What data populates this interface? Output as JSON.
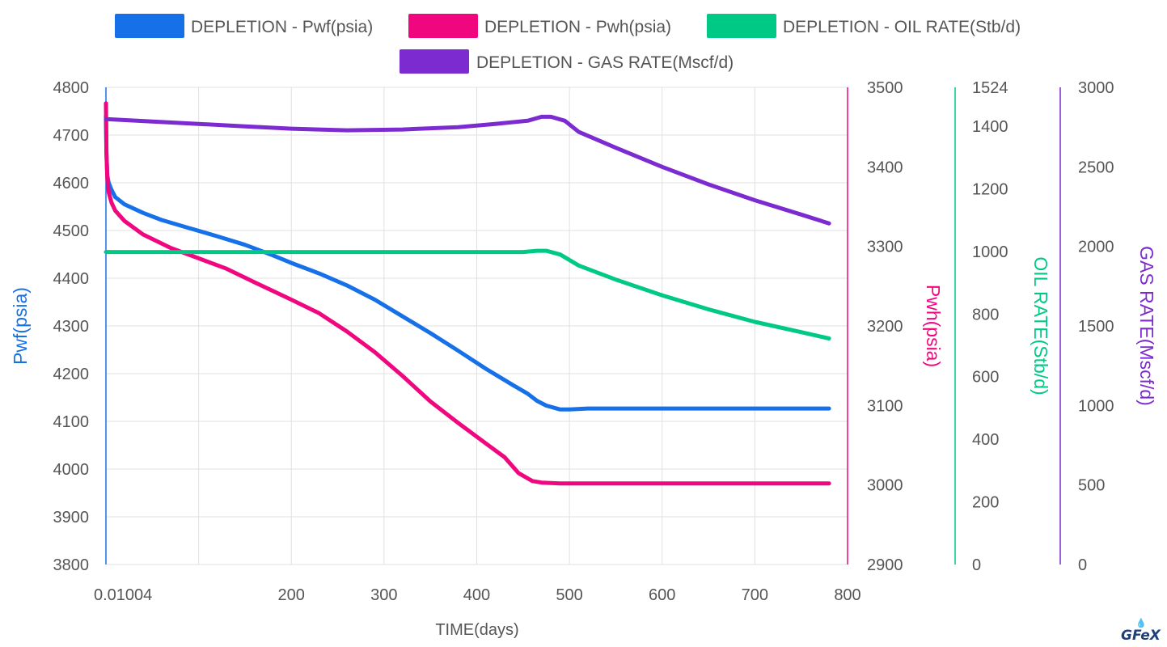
{
  "colors": {
    "pwf": "#1670e8",
    "pwh": "#f0077f",
    "oil": "#00c986",
    "gas": "#7b2bd0",
    "grid": "#e0e0e0",
    "text": "#555555"
  },
  "logo": {
    "text": "GFeX",
    "icon": "flame-icon"
  },
  "chart_data": {
    "type": "line",
    "legend_position": "top-center",
    "grid": true,
    "x_axis": {
      "title": "TIME(days)",
      "range": [
        0.01004,
        800
      ],
      "ticks": [
        {
          "value": 0.01004,
          "label": "0.01004"
        },
        {
          "value": 200,
          "label": "200"
        },
        {
          "value": 300,
          "label": "300"
        },
        {
          "value": 400,
          "label": "400"
        },
        {
          "value": 500,
          "label": "500"
        },
        {
          "value": 600,
          "label": "600"
        },
        {
          "value": 700,
          "label": "700"
        },
        {
          "value": 800,
          "label": "800"
        }
      ],
      "gridlines": [
        100,
        200,
        300,
        400,
        500,
        600,
        700,
        800
      ]
    },
    "y_axes": [
      {
        "id": "pwf",
        "title": "Pwf(psia)",
        "side": "left",
        "range": [
          3800,
          4800
        ],
        "ticks": [
          {
            "value": 3800,
            "label": "3800"
          },
          {
            "value": 3900,
            "label": "3900"
          },
          {
            "value": 4000,
            "label": "4000"
          },
          {
            "value": 4100,
            "label": "4100"
          },
          {
            "value": 4200,
            "label": "4200"
          },
          {
            "value": 4300,
            "label": "4300"
          },
          {
            "value": 4400,
            "label": "4400"
          },
          {
            "value": 4500,
            "label": "4500"
          },
          {
            "value": 4600,
            "label": "4600"
          },
          {
            "value": 4700,
            "label": "4700"
          },
          {
            "value": 4800,
            "label": "4800"
          }
        ]
      },
      {
        "id": "pwh",
        "title": "Pwh(psia)",
        "side": "right",
        "range": [
          2900,
          3500
        ],
        "ticks": [
          {
            "value": 2900,
            "label": "2900"
          },
          {
            "value": 3000,
            "label": "3000"
          },
          {
            "value": 3100,
            "label": "3100"
          },
          {
            "value": 3200,
            "label": "3200"
          },
          {
            "value": 3300,
            "label": "3300"
          },
          {
            "value": 3400,
            "label": "3400"
          },
          {
            "value": 3500,
            "label": "3500"
          }
        ]
      },
      {
        "id": "oil",
        "title": "OIL RATE(Stb/d)",
        "side": "right",
        "range": [
          0,
          1524
        ],
        "ticks": [
          {
            "value": 0,
            "label": "0"
          },
          {
            "value": 200,
            "label": "200"
          },
          {
            "value": 400,
            "label": "400"
          },
          {
            "value": 600,
            "label": "600"
          },
          {
            "value": 800,
            "label": "800"
          },
          {
            "value": 1000,
            "label": "1000"
          },
          {
            "value": 1200,
            "label": "1200"
          },
          {
            "value": 1400,
            "label": "1400"
          },
          {
            "value": 1524,
            "label": "1524"
          }
        ]
      },
      {
        "id": "gas",
        "title": "GAS RATE(Mscf/d)",
        "side": "right",
        "range": [
          0,
          3000
        ],
        "ticks": [
          {
            "value": 0,
            "label": "0"
          },
          {
            "value": 500,
            "label": "500"
          },
          {
            "value": 1000,
            "label": "1000"
          },
          {
            "value": 1500,
            "label": "1500"
          },
          {
            "value": 2000,
            "label": "2000"
          },
          {
            "value": 2500,
            "label": "2500"
          },
          {
            "value": 3000,
            "label": "3000"
          }
        ]
      }
    ],
    "series": [
      {
        "name": "DEPLETION - Pwf(psia)",
        "axis": "pwf",
        "color": "#1670e8",
        "points": [
          [
            0.01004,
            4740
          ],
          [
            0.5,
            4660
          ],
          [
            1.5,
            4615
          ],
          [
            3,
            4600
          ],
          [
            6,
            4585
          ],
          [
            10,
            4570
          ],
          [
            20,
            4555
          ],
          [
            40,
            4537
          ],
          [
            60,
            4522
          ],
          [
            90,
            4505
          ],
          [
            120,
            4488
          ],
          [
            150,
            4470
          ],
          [
            180,
            4448
          ],
          [
            200,
            4432
          ],
          [
            230,
            4410
          ],
          [
            260,
            4385
          ],
          [
            290,
            4355
          ],
          [
            320,
            4320
          ],
          [
            350,
            4285
          ],
          [
            380,
            4248
          ],
          [
            410,
            4210
          ],
          [
            440,
            4175
          ],
          [
            455,
            4158
          ],
          [
            465,
            4143
          ],
          [
            475,
            4133
          ],
          [
            490,
            4125
          ],
          [
            500,
            4125
          ],
          [
            520,
            4127
          ],
          [
            600,
            4127
          ],
          [
            700,
            4127
          ],
          [
            780,
            4127
          ]
        ]
      },
      {
        "name": "DEPLETION - Pwh(psia)",
        "axis": "pwh",
        "color": "#f0077f",
        "points": [
          [
            0.01004,
            3480
          ],
          [
            0.5,
            3420
          ],
          [
            1.5,
            3385
          ],
          [
            3,
            3368
          ],
          [
            6,
            3355
          ],
          [
            10,
            3345
          ],
          [
            20,
            3332
          ],
          [
            40,
            3315
          ],
          [
            70,
            3298
          ],
          [
            100,
            3285
          ],
          [
            130,
            3272
          ],
          [
            160,
            3255
          ],
          [
            200,
            3233
          ],
          [
            230,
            3216
          ],
          [
            260,
            3193
          ],
          [
            290,
            3167
          ],
          [
            320,
            3137
          ],
          [
            350,
            3105
          ],
          [
            380,
            3078
          ],
          [
            410,
            3052
          ],
          [
            430,
            3035
          ],
          [
            445,
            3015
          ],
          [
            460,
            3005
          ],
          [
            470,
            3003
          ],
          [
            490,
            3002
          ],
          [
            500,
            3002
          ],
          [
            550,
            3002
          ],
          [
            650,
            3002
          ],
          [
            780,
            3002
          ]
        ]
      },
      {
        "name": "DEPLETION - OIL RATE(Stb/d)",
        "axis": "oil",
        "color": "#00c986",
        "points": [
          [
            0.01004,
            998
          ],
          [
            50,
            998
          ],
          [
            150,
            998
          ],
          [
            250,
            998
          ],
          [
            350,
            998
          ],
          [
            450,
            998
          ],
          [
            465,
            1002
          ],
          [
            475,
            1002
          ],
          [
            490,
            990
          ],
          [
            510,
            955
          ],
          [
            550,
            910
          ],
          [
            600,
            860
          ],
          [
            650,
            815
          ],
          [
            700,
            775
          ],
          [
            750,
            742
          ],
          [
            780,
            722
          ]
        ]
      },
      {
        "name": "DEPLETION - GAS RATE(Mscf/d)",
        "axis": "gas",
        "color": "#7b2bd0",
        "points": [
          [
            0.01004,
            2800
          ],
          [
            50,
            2785
          ],
          [
            100,
            2770
          ],
          [
            150,
            2755
          ],
          [
            200,
            2740
          ],
          [
            260,
            2730
          ],
          [
            320,
            2735
          ],
          [
            380,
            2750
          ],
          [
            420,
            2770
          ],
          [
            455,
            2790
          ],
          [
            470,
            2815
          ],
          [
            480,
            2815
          ],
          [
            495,
            2790
          ],
          [
            510,
            2720
          ],
          [
            550,
            2620
          ],
          [
            600,
            2500
          ],
          [
            650,
            2390
          ],
          [
            700,
            2290
          ],
          [
            750,
            2200
          ],
          [
            780,
            2145
          ]
        ]
      }
    ]
  }
}
